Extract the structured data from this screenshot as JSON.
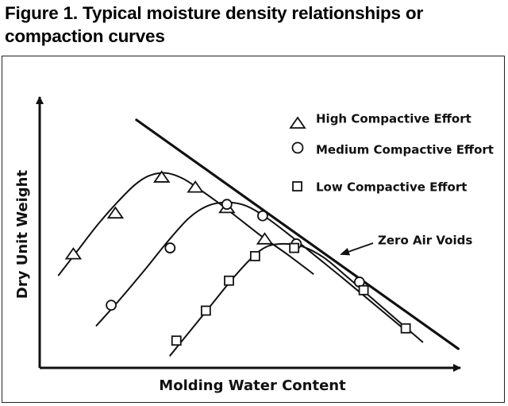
{
  "figure": {
    "title_line1": "Figure 1. Typical moisture density relationships or",
    "title_line2": "compaction curves"
  },
  "chart_data": {
    "type": "line",
    "title": "Figure 1. Typical moisture density relationships or compaction curves",
    "xlabel": "Molding Water Content",
    "ylabel": "Dry Unit Weight",
    "x_ticks": "none",
    "y_ticks": "none",
    "xlim": [
      0,
      10
    ],
    "ylim": [
      0,
      10
    ],
    "grid": false,
    "legend_position": "top-right",
    "legend": [
      {
        "label": "High Compactive Effort",
        "marker": "triangle"
      },
      {
        "label": "Medium Compactive Effort",
        "marker": "circle"
      },
      {
        "label": "Low Compactive Effort",
        "marker": "square"
      }
    ],
    "series": [
      {
        "name": "High Compactive Effort",
        "marker": "triangle",
        "curve": [
          [
            0.45,
            3.4
          ],
          [
            0.9,
            4.3
          ],
          [
            1.35,
            5.2
          ],
          [
            1.8,
            6.0
          ],
          [
            2.25,
            6.7
          ],
          [
            2.6,
            7.05
          ],
          [
            3.0,
            7.15
          ],
          [
            3.4,
            6.95
          ],
          [
            3.8,
            6.55
          ],
          [
            4.3,
            6.0
          ],
          [
            4.8,
            5.4
          ],
          [
            5.3,
            4.8
          ],
          [
            5.9,
            4.15
          ],
          [
            6.5,
            3.45
          ]
        ],
        "points": [
          [
            0.8,
            4.15
          ],
          [
            1.8,
            5.65
          ],
          [
            2.9,
            6.97
          ],
          [
            3.7,
            6.6
          ],
          [
            4.45,
            5.85
          ],
          [
            5.35,
            4.7
          ]
        ]
      },
      {
        "name": "Medium Compactive Effort",
        "marker": "circle",
        "curve": [
          [
            1.35,
            1.55
          ],
          [
            1.9,
            2.5
          ],
          [
            2.5,
            3.6
          ],
          [
            3.05,
            4.65
          ],
          [
            3.55,
            5.5
          ],
          [
            4.0,
            5.95
          ],
          [
            4.45,
            6.07
          ],
          [
            4.9,
            5.95
          ],
          [
            5.4,
            5.5
          ],
          [
            6.0,
            4.8
          ],
          [
            6.6,
            4.05
          ],
          [
            7.2,
            3.3
          ],
          [
            7.9,
            2.4
          ],
          [
            8.6,
            1.5
          ]
        ],
        "points": [
          [
            1.7,
            2.3
          ],
          [
            3.1,
            4.4
          ],
          [
            4.45,
            6.0
          ],
          [
            5.3,
            5.58
          ],
          [
            6.1,
            4.55
          ],
          [
            7.6,
            3.15
          ]
        ]
      },
      {
        "name": "Low Compactive Effort",
        "marker": "square",
        "curve": [
          [
            3.1,
            0.45
          ],
          [
            3.6,
            1.4
          ],
          [
            4.1,
            2.35
          ],
          [
            4.6,
            3.3
          ],
          [
            5.05,
            4.05
          ],
          [
            5.4,
            4.45
          ],
          [
            5.8,
            4.55
          ],
          [
            6.25,
            4.45
          ],
          [
            6.75,
            4.05
          ],
          [
            7.3,
            3.35
          ],
          [
            7.9,
            2.55
          ],
          [
            8.5,
            1.75
          ],
          [
            9.1,
            0.95
          ]
        ],
        "points": [
          [
            3.25,
            1.0
          ],
          [
            3.95,
            2.1
          ],
          [
            4.5,
            3.2
          ],
          [
            5.12,
            4.1
          ],
          [
            6.05,
            4.4
          ],
          [
            7.7,
            2.85
          ],
          [
            8.7,
            1.45
          ]
        ]
      },
      {
        "name": "Zero Air Voids",
        "marker": "none",
        "curve": [
          [
            2.3,
            9.1
          ],
          [
            9.95,
            0.7
          ]
        ]
      }
    ],
    "annotations": [
      {
        "text": "Zero Air Voids",
        "points_to": "zero-air-voids-line"
      }
    ]
  },
  "labels": {
    "x_axis": "Molding Water Content",
    "y_axis": "Dry Unit Weight",
    "zero_air_voids": "Zero Air Voids"
  },
  "colors": {
    "ink": "#111111",
    "background": "#ffffff"
  }
}
